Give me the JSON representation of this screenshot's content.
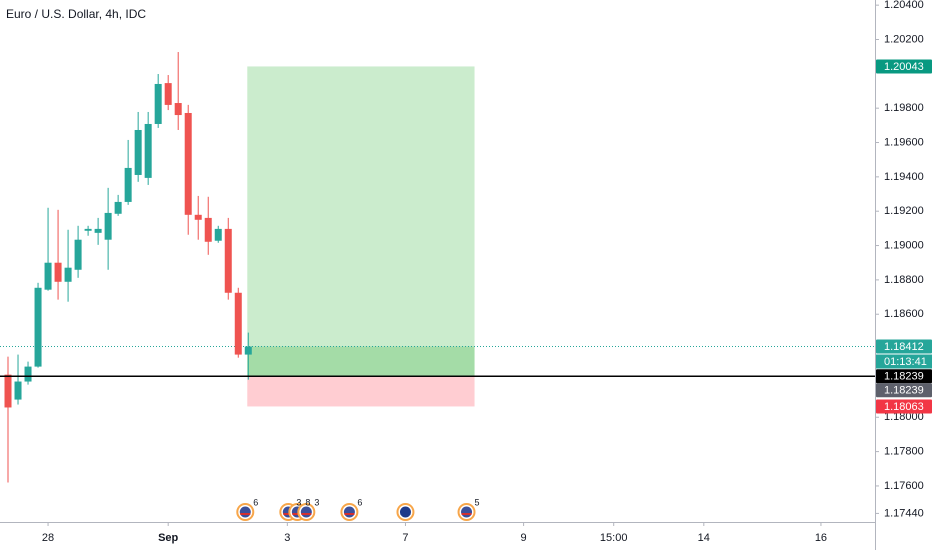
{
  "chart_data": {
    "type": "candlestick",
    "title": "Euro / U.S. Dollar, 4h, IDC",
    "open": [
      1.18248,
      1.18103,
      1.18208,
      1.18295,
      1.18743,
      1.189,
      1.18789,
      1.18859,
      1.19086,
      1.19074,
      1.19034,
      1.19185,
      1.19254,
      1.19411,
      1.19394,
      1.19708,
      1.19946,
      1.1983,
      1.19772,
      1.19179,
      1.19161,
      1.19028,
      1.19097,
      1.18725,
      1.18365
    ],
    "high": [
      1.18353,
      1.18365,
      1.18324,
      1.18783,
      1.1922,
      1.19208,
      1.19092,
      1.19115,
      1.19115,
      1.19161,
      1.19336,
      1.19295,
      1.19615,
      1.19778,
      1.19778,
      1.19999,
      1.19993,
      1.20127,
      1.19819,
      1.19289,
      1.19284,
      1.19115,
      1.19161,
      1.18754,
      1.18493
    ],
    "low": [
      1.1762,
      1.18074,
      1.1819,
      1.18289,
      1.18737,
      1.18685,
      1.18673,
      1.18812,
      1.19057,
      1.19004,
      1.18859,
      1.19173,
      1.19237,
      1.19371,
      1.19353,
      1.19685,
      1.19789,
      1.19673,
      1.19063,
      1.19034,
      1.18946,
      1.19016,
      1.18685,
      1.18347,
      1.18219
    ],
    "close": [
      1.18057,
      1.18208,
      1.18295,
      1.18754,
      1.189,
      1.18789,
      1.18871,
      1.19034,
      1.19097,
      1.19097,
      1.1919,
      1.19254,
      1.19452,
      1.19673,
      1.19708,
      1.19941,
      1.19819,
      1.1976,
      1.19179,
      1.1915,
      1.19022,
      1.19097,
      1.18725,
      1.18365,
      1.18412
    ],
    "up_color": "#26a69a",
    "down_color": "#ef5350",
    "xlim": [
      -0.8,
      86.6
    ],
    "xticks": [
      {
        "value": 4,
        "label": "28"
      },
      {
        "value": 16,
        "label": "Sep"
      },
      {
        "value": 27.9,
        "label": "3"
      },
      {
        "value": 39.7,
        "label": "7"
      },
      {
        "value": 51.5,
        "label": "9"
      },
      {
        "value": 60.5,
        "label": "15:00"
      },
      {
        "value": 69.5,
        "label": "14"
      },
      {
        "value": 81.2,
        "label": "16"
      }
    ],
    "ylim": [
      1.1739,
      1.2043
    ],
    "yticks": [
      {
        "value": 1.204,
        "label": "1.20400"
      },
      {
        "value": 1.202,
        "label": "1.20200"
      },
      {
        "value": 1.198,
        "label": "1.19800"
      },
      {
        "value": 1.196,
        "label": "1.19600"
      },
      {
        "value": 1.194,
        "label": "1.19400"
      },
      {
        "value": 1.192,
        "label": "1.19200"
      },
      {
        "value": 1.19,
        "label": "1.19000"
      },
      {
        "value": 1.188,
        "label": "1.18800"
      },
      {
        "value": 1.186,
        "label": "1.18600"
      },
      {
        "value": 1.18,
        "label": "1.18000"
      },
      {
        "value": 1.178,
        "label": "1.17800"
      },
      {
        "value": 1.176,
        "label": "1.17600"
      },
      {
        "value": 1.1744,
        "label": "1.17440"
      }
    ],
    "position": {
      "start": 23.9,
      "end": 46.6,
      "target": {
        "value": 1.20043,
        "label": "1.20043"
      },
      "entry": {
        "value": 1.18239,
        "label": "1.18239"
      },
      "stop": {
        "value": 1.18063,
        "label": "1.18063"
      }
    },
    "last_price": {
      "value": 1.18412,
      "label": "1.18412"
    },
    "countdown": "01:13:41",
    "hline": {
      "value": 1.18239,
      "label": "1.18239"
    },
    "events": [
      {
        "x": 23.7,
        "labels": [
          6
        ]
      },
      {
        "x": 28,
        "labels": [
          3,
          8,
          3
        ]
      },
      {
        "x": 34.1,
        "labels": [
          6
        ]
      },
      {
        "x": 39.7,
        "labels": []
      },
      {
        "x": 45.8,
        "labels": [
          5
        ]
      }
    ]
  }
}
